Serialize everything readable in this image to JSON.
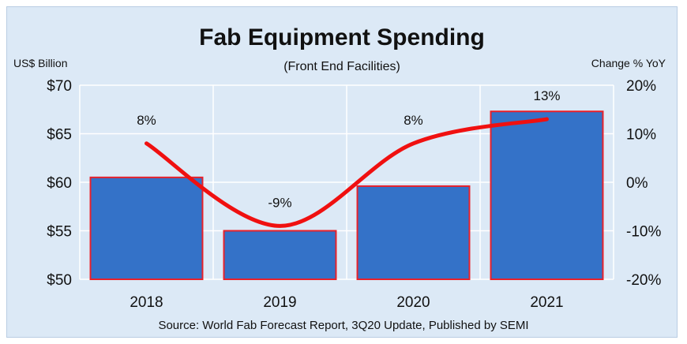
{
  "chart_data": {
    "type": "bar",
    "title": "Fab Equipment Spending",
    "subtitle": "(Front End Facilities)",
    "left_axis_label": "US$ Billion",
    "right_axis_label": "Change % YoY",
    "categories": [
      "2018",
      "2019",
      "2020",
      "2021"
    ],
    "series": [
      {
        "name": "Fab equipment spending (US$ Billion)",
        "type": "bar",
        "axis": "left",
        "values": [
          60.5,
          55.0,
          59.6,
          67.3
        ]
      },
      {
        "name": "Change % YoY",
        "type": "line",
        "axis": "right",
        "values": [
          8,
          -9,
          8,
          13
        ],
        "data_labels": [
          "8%",
          "-9%",
          "8%",
          "13%"
        ]
      }
    ],
    "ylim_left": [
      50,
      70
    ],
    "yticks_left": [
      50,
      55,
      60,
      65,
      70
    ],
    "ytick_labels_left": [
      "$50",
      "$55",
      "$60",
      "$65",
      "$70"
    ],
    "ylim_right": [
      -20,
      20
    ],
    "yticks_right": [
      -20,
      -10,
      0,
      10,
      20
    ],
    "ytick_labels_right": [
      "-20%",
      "-10%",
      "0%",
      "10%",
      "20%"
    ],
    "grid": true,
    "source": "Source: World Fab Forecast Report, 3Q20 Update, Published by SEMI",
    "colors": {
      "bar_fill": "#3472c8",
      "bar_edge": "#e8212b",
      "line": "#f01010",
      "grid": "#ffffff",
      "background": "#dce9f6"
    }
  }
}
